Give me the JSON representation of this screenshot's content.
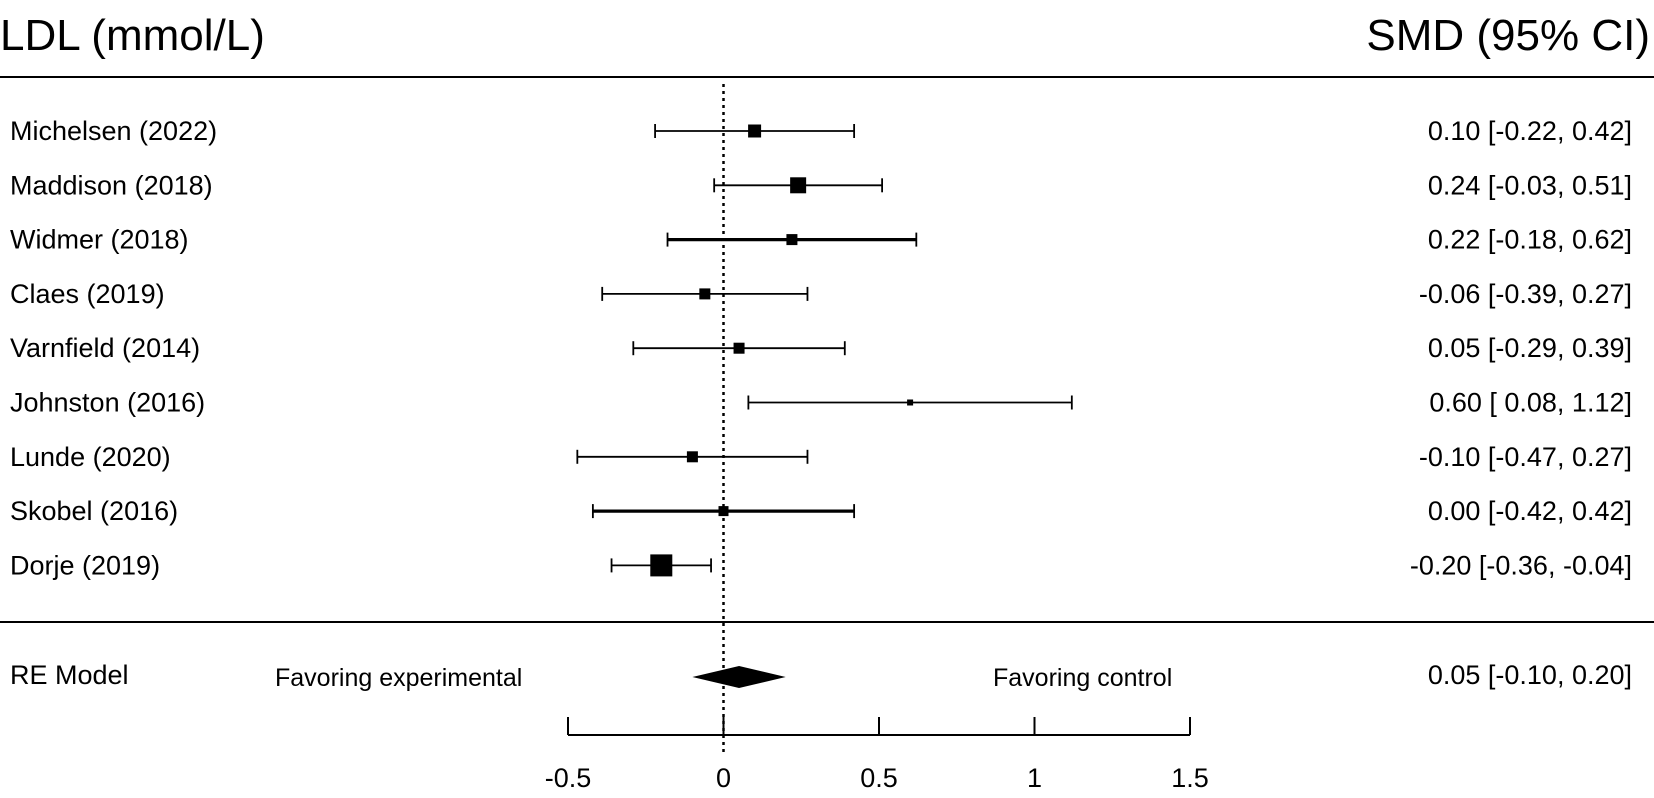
{
  "chart_data": {
    "type": "forest",
    "title": "LDL (mmol/L)",
    "effect_header": "SMD (95% CI)",
    "studies": [
      {
        "label": "Michelsen  (2022)",
        "est": 0.1,
        "lo": -0.22,
        "hi": 0.42,
        "ci_text": "0.10 [-0.22,  0.42]"
      },
      {
        "label": "Maddison (2018)",
        "est": 0.24,
        "lo": -0.03,
        "hi": 0.51,
        "ci_text": "0.24 [-0.03,  0.51]"
      },
      {
        "label": "Widmer (2018)",
        "est": 0.22,
        "lo": -0.18,
        "hi": 0.62,
        "ci_text": "0.22 [-0.18,  0.62]"
      },
      {
        "label": "Claes (2019)",
        "est": -0.06,
        "lo": -0.39,
        "hi": 0.27,
        "ci_text": "-0.06 [-0.39,  0.27]"
      },
      {
        "label": "Varnfield (2014)",
        "est": 0.05,
        "lo": -0.29,
        "hi": 0.39,
        "ci_text": "0.05 [-0.29,  0.39]"
      },
      {
        "label": "Johnston (2016)",
        "est": 0.6,
        "lo": 0.08,
        "hi": 1.12,
        "ci_text": "0.60 [ 0.08,  1.12]"
      },
      {
        "label": "Lunde (2020)",
        "est": -0.1,
        "lo": -0.47,
        "hi": 0.27,
        "ci_text": "-0.10 [-0.47,  0.27]"
      },
      {
        "label": "Skobel (2016)",
        "est": 0.0,
        "lo": -0.42,
        "hi": 0.42,
        "ci_text": "0.00 [-0.42,  0.42]"
      },
      {
        "label": "Dorje  (2019)",
        "est": -0.2,
        "lo": -0.36,
        "hi": -0.04,
        "ci_text": "-0.20 [-0.36, -0.04]"
      }
    ],
    "summary": {
      "label": "RE Model",
      "est": 0.05,
      "lo": -0.1,
      "hi": 0.2,
      "ci_text": "0.05 [-0.10,  0.20]"
    },
    "favoring_left": "Favoring experimental",
    "favoring_right": "Favoring control",
    "x_ticks": [
      -0.5,
      0,
      0.5,
      1,
      1.5
    ],
    "x_tick_labels": [
      "-0.5",
      "0",
      "0.5",
      "1",
      "1.5"
    ],
    "xlim": [
      -0.5,
      1.5
    ],
    "reference_line": 0,
    "marker_color": "#000000"
  }
}
